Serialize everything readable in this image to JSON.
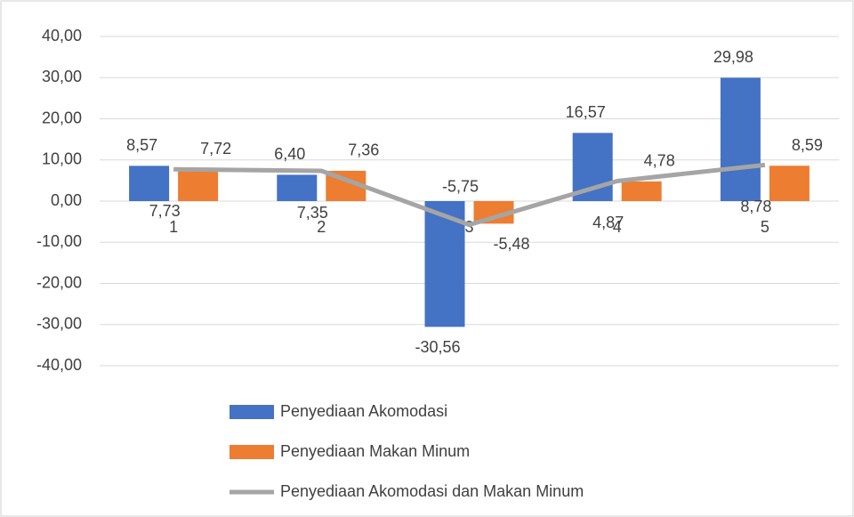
{
  "chart_data": {
    "type": "bar",
    "categories": [
      "1",
      "2",
      "3",
      "4",
      "5"
    ],
    "series": [
      {
        "name": "Penyediaan Akomodasi",
        "type": "bar",
        "color": "#4472c4",
        "values": [
          8.57,
          6.4,
          -30.56,
          16.57,
          29.98
        ],
        "value_labels": [
          "8,57",
          "6,40",
          "-30,56",
          "16,57",
          "29,98"
        ]
      },
      {
        "name": "Penyediaan Makan Minum",
        "type": "bar",
        "color": "#ed7d31",
        "values": [
          7.72,
          7.36,
          -5.48,
          4.78,
          8.59
        ],
        "value_labels": [
          "7,72",
          "7,36",
          "-5,48",
          "4,78",
          "8,59"
        ]
      },
      {
        "name": "Penyediaan Akomodasi dan Makan Minum",
        "type": "line",
        "color": "#a5a5a5",
        "values": [
          7.73,
          7.35,
          -5.75,
          4.87,
          8.78
        ],
        "value_labels": [
          "7,73",
          "7,35",
          "-5,75",
          "4,87",
          "8,78"
        ]
      }
    ],
    "ylim": [
      -40,
      40
    ],
    "yticks": [
      {
        "value": -40,
        "label": "-40,00"
      },
      {
        "value": -30,
        "label": "-30,00"
      },
      {
        "value": -20,
        "label": "-20,00"
      },
      {
        "value": -10,
        "label": "-10,00"
      },
      {
        "value": 0,
        "label": "0,00"
      },
      {
        "value": 10,
        "label": "10,00"
      },
      {
        "value": 20,
        "label": "20,00"
      },
      {
        "value": 30,
        "label": "30,00"
      },
      {
        "value": 40,
        "label": "40,00"
      }
    ],
    "grid": true,
    "legend": "bottom"
  }
}
